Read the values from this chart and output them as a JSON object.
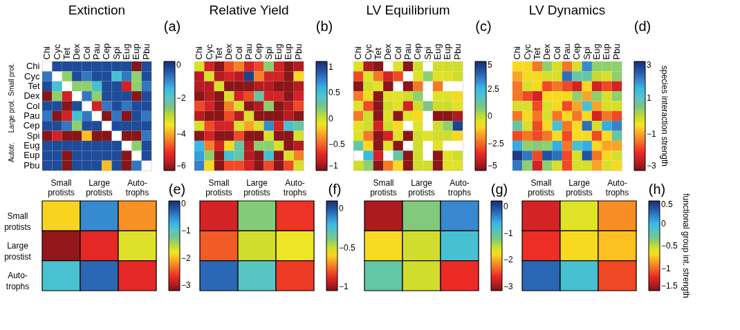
{
  "chart_data": [
    {
      "type": "heatmap",
      "title": "Extinction",
      "annotations": [
        "(a)",
        "Small prot.",
        "Large prot.",
        "Autotr."
      ],
      "categories": [
        "Chi",
        "Cyc",
        "Tet",
        "Dex",
        "Col",
        "Pau",
        "Cep",
        "Spi",
        "Eug",
        "Eup",
        "Pbu"
      ],
      "y_categories": [
        "Chi",
        "Cyc",
        "Tet",
        "Dex",
        "Col",
        "Pau",
        "Cep",
        "Spi",
        "Eug",
        "Eup",
        "Pbu"
      ],
      "cells": [
        [
          null,
          -0.4,
          -0.4,
          -0.4,
          -0.4,
          -0.4,
          -0.4,
          -0.4,
          -0.4,
          -5.9,
          -0.4
        ],
        [
          -0.9,
          null,
          -2.7,
          -0.4,
          -0.9,
          -0.4,
          -0.4,
          -1.8,
          -0.9,
          -2.7,
          -0.4
        ],
        [
          -0.4,
          -1.8,
          null,
          -2.7,
          -2.7,
          -1.8,
          -0.4,
          -0.4,
          -5.3,
          -2.7,
          -0.9
        ],
        [
          -5.9,
          -2.7,
          -5.3,
          null,
          -0.9,
          -2.7,
          -0.4,
          -0.4,
          -0.4,
          -5.9,
          -0.4
        ],
        [
          -0.4,
          -0.4,
          -5.9,
          -0.4,
          null,
          -5.3,
          -0.9,
          -0.4,
          -0.9,
          -0.4,
          -0.4
        ],
        [
          -0.9,
          -5.9,
          -5.3,
          -1.8,
          -0.9,
          null,
          -5.9,
          -0.9,
          -5.9,
          -0.4,
          -0.9
        ],
        [
          -0.4,
          -0.4,
          -0.9,
          -2.7,
          -0.4,
          -0.4,
          null,
          -0.4,
          -0.4,
          -0.4,
          -0.4
        ],
        [
          -5.9,
          -5.3,
          -5.9,
          -5.9,
          -3.8,
          -5.9,
          -5.9,
          null,
          -5.9,
          -5.9,
          -0.9
        ],
        [
          -0.4,
          -0.4,
          -0.4,
          -0.4,
          -0.4,
          -0.4,
          -0.4,
          -0.4,
          null,
          -2.7,
          -0.4
        ],
        [
          -0.4,
          -0.4,
          -5.9,
          -0.4,
          -0.4,
          -0.4,
          -0.4,
          -0.4,
          -5.9,
          null,
          -0.4
        ],
        [
          -0.4,
          -0.4,
          -5.9,
          -0.4,
          -0.4,
          -0.4,
          -3.8,
          -0.4,
          -5.9,
          -0.9,
          null
        ]
      ],
      "clim": [
        -6,
        0
      ],
      "cticks": [
        0,
        -2,
        -4,
        -6
      ]
    },
    {
      "type": "heatmap",
      "title": "Relative Yield",
      "annotations": [
        "(b)"
      ],
      "tick_labels": "x",
      "categories": [
        "Chi",
        "Cyc",
        "Tet",
        "Dex",
        "Col",
        "Pau",
        "Cep",
        "Spi",
        "Eug",
        "Eup",
        "Pbu"
      ],
      "y_categories": [
        null,
        null,
        null,
        null,
        null,
        null,
        null,
        null,
        null,
        null,
        null
      ],
      "cells": [
        [
          -0.03,
          -0.75,
          -0.96,
          -0.58,
          -0.41,
          -0.75,
          -0.58,
          0.16,
          -0.75,
          -0.96,
          -0.85
        ],
        [
          -0.85,
          -0.03,
          -0.85,
          -0.75,
          -0.85,
          1.0,
          -0.41,
          -0.75,
          -0.75,
          -0.96,
          -0.16
        ],
        [
          -0.85,
          -0.85,
          -0.03,
          -0.96,
          -0.96,
          -0.96,
          -0.85,
          -0.85,
          -0.96,
          -0.96,
          -0.85
        ],
        [
          -0.96,
          -0.85,
          -0.96,
          -0.03,
          -0.75,
          -0.58,
          0.3,
          -0.75,
          -0.75,
          -0.96,
          -0.75
        ],
        [
          -0.58,
          -0.75,
          -0.96,
          -0.41,
          -0.03,
          -0.96,
          -0.85,
          0.16,
          -0.96,
          -0.85,
          -0.58
        ],
        [
          -0.85,
          -0.96,
          -0.96,
          -0.58,
          -0.85,
          -0.03,
          -0.96,
          -0.96,
          -0.96,
          -0.85,
          -0.96
        ],
        [
          -0.03,
          -0.58,
          -0.75,
          -0.75,
          -0.03,
          -0.3,
          -0.03,
          0.72,
          -0.75,
          0.47,
          0.3
        ],
        [
          -0.96,
          -0.75,
          -0.96,
          -0.96,
          -0.58,
          -0.96,
          -0.96,
          -0.03,
          -0.96,
          -0.96,
          -0.03
        ],
        [
          0.55,
          -0.41,
          -0.75,
          -0.16,
          0.3,
          -0.85,
          0.16,
          0.16,
          -0.03,
          -0.96,
          -0.85
        ],
        [
          0.65,
          0.16,
          -0.96,
          0.47,
          0.3,
          -0.85,
          -0.96,
          0.47,
          -0.96,
          -0.03,
          -0.41
        ],
        [
          0.75,
          -0.16,
          -0.96,
          -0.58,
          -0.58,
          -0.75,
          -0.96,
          -0.58,
          -0.96,
          -0.58,
          -0.03
        ]
      ],
      "clim": [
        -1,
        1.1
      ],
      "cticks": [
        1,
        0.5,
        0,
        -0.5,
        -1
      ]
    },
    {
      "type": "heatmap",
      "title": "LV Equilibrium",
      "annotations": [
        "(c)"
      ],
      "tick_labels": "x",
      "categories": [
        "Chi",
        "Cyc",
        "Tet",
        "Dex",
        "Col",
        "Pau",
        "Cep",
        "Spi",
        "Eug",
        "Eup",
        "Pbu"
      ],
      "y_categories": [
        null,
        null,
        null,
        null,
        null,
        null,
        null,
        null,
        null,
        null,
        null
      ],
      "cells": [
        [
          -0.5,
          -4.4,
          -4.8,
          null,
          -0.5,
          -4.8,
          -0.2,
          null,
          -0.2,
          -0.2,
          -0.2
        ],
        [
          -3,
          -0.5,
          -2.3,
          -3.8,
          -3,
          null,
          -0.5,
          0.5,
          -0.5,
          -0.5,
          -0.2
        ],
        [
          -4.8,
          -0.2,
          -0.5,
          -4.8,
          null,
          -4.8,
          -2.3,
          null,
          -2.3,
          null,
          null
        ],
        [
          -2.3,
          -1,
          -4.8,
          -0.5,
          -0.5,
          -0.2,
          0.5,
          null,
          -0.5,
          -0.5,
          -1
        ],
        [
          -0.5,
          -3,
          -4.8,
          -0.2,
          -0.5,
          -3.8,
          -0.2,
          0.8,
          -0.2,
          -0.2,
          -0.5
        ],
        [
          -2.3,
          -0.2,
          -4.8,
          -0.5,
          -4.8,
          -0.5,
          -1,
          null,
          -4.8,
          -4.8,
          -4.4
        ],
        [
          -0.5,
          -0.2,
          -3.8,
          -0.2,
          -1,
          null,
          -0.5,
          null,
          -0.2,
          0.5,
          4.5
        ],
        [
          -0.5,
          -2.3,
          -4.8,
          -3.8,
          -0.5,
          -4.8,
          -0.2,
          -0.5,
          -0.2,
          -0.2,
          -1
        ],
        [
          1.2,
          -1,
          -4.8,
          -0.5,
          -4.8,
          null,
          -0.2,
          null,
          -0.5,
          null,
          null
        ],
        [
          null,
          2.2,
          -3.8,
          null,
          1.2,
          -4.8,
          -0.2,
          null,
          -4.8,
          -0.5,
          -0.2
        ],
        [
          -0.2,
          0.5,
          -4.8,
          -2.3,
          -1,
          -4.8,
          -0.2,
          -0.2,
          -4.8,
          -0.5,
          -0.5
        ]
      ],
      "clim": [
        -5,
        5
      ],
      "cticks": [
        5,
        2.5,
        0,
        -2.5,
        -5
      ]
    },
    {
      "type": "heatmap",
      "title": "LV Dynamics",
      "annotations": [
        "(d)"
      ],
      "tick_labels": "x",
      "clabel": "species interaction strength",
      "categories": [
        "Chi",
        "Cyc",
        "Tet",
        "Dex",
        "Col",
        "Pau",
        "Cep",
        "Spi",
        "Eug",
        "Eup",
        "Pbu"
      ],
      "y_categories": [
        null,
        null,
        null,
        null,
        null,
        null,
        null,
        null,
        null,
        null,
        null
      ],
      "cells": [
        [
          -0.6,
          -0.6,
          -1.4,
          0.3,
          -0.2,
          -1.4,
          -0.2,
          1.9,
          0.3,
          0.3,
          0.3
        ],
        [
          -1.0,
          -0.6,
          -0.6,
          -0.2,
          -0.2,
          2.2,
          0.7,
          0.7,
          0,
          -0.2,
          0.3
        ],
        [
          -1.4,
          -0.2,
          -0.6,
          -1.8,
          -1.4,
          -1.8,
          -2.3,
          -0.6,
          -2.3,
          -1.8,
          -2.3
        ],
        [
          -1.4,
          -1.8,
          -2.3,
          -0.6,
          -0.6,
          -0.6,
          0.3,
          -1.0,
          0.3,
          -0.2,
          0.3
        ],
        [
          -0.2,
          -0.2,
          -1.8,
          -0.2,
          -0.6,
          -1.8,
          -1.0,
          1.2,
          -1.0,
          -0.2,
          -0.2
        ],
        [
          -1.4,
          -0.6,
          -1.4,
          -0.2,
          -1.4,
          -0.6,
          -1.4,
          -0.6,
          -2.3,
          -1.4,
          -1.8
        ],
        [
          0.7,
          -0.2,
          -1.8,
          -0.6,
          1.2,
          -1.4,
          -0.6,
          2.2,
          -0.2,
          1.6,
          2.0
        ],
        [
          -1.8,
          -1.4,
          -1.8,
          -1.4,
          -0.6,
          -1.8,
          -0.6,
          -0.6,
          -1.8,
          -0.6,
          0.7
        ],
        [
          1.6,
          0.3,
          0.4,
          0.3,
          1.6,
          -1.4,
          1.2,
          1.6,
          -0.6,
          -1.0,
          -1.0
        ],
        [
          2.8,
          2.1,
          -1.8,
          2.5,
          2.2,
          -1.8,
          -0.2,
          2.5,
          -1.4,
          -0.6,
          -0.2
        ],
        [
          2.1,
          0.3,
          -2.3,
          0.3,
          -0.2,
          -1.8,
          -0.2,
          -0.2,
          -1.0,
          -0.2,
          -0.6
        ]
      ],
      "clim": [
        -3,
        3
      ],
      "cticks": [
        3,
        1,
        -1,
        -3
      ]
    },
    {
      "type": "heatmap",
      "annotations": [
        "(e)"
      ],
      "categories": [
        "Small\nprotists",
        "Large\nprotists",
        "Auto-\ntrophs"
      ],
      "y_categories": [
        "Small\nprotists",
        "Large\nprostist",
        "Auto-\ntrophs"
      ],
      "cells": [
        [
          -1.9,
          -0.5,
          -2.2
        ],
        [
          -3.1,
          -2.7,
          -1.7
        ],
        [
          -0.9,
          -0.3,
          -2.7
        ]
      ],
      "clim": [
        -3.2,
        0.1
      ],
      "cticks": [
        0,
        -1,
        -2,
        -3
      ]
    },
    {
      "type": "heatmap",
      "annotations": [
        "(f)"
      ],
      "tick_labels": "x",
      "categories": [
        "Small\nprotists",
        "Large\nprotists",
        "Auto-\ntrophs"
      ],
      "y_categories": [
        null,
        null,
        null
      ],
      "cells": [
        [
          -0.91,
          -0.4,
          -0.85
        ],
        [
          -0.79,
          -0.5,
          -0.56
        ],
        [
          -0.04,
          -0.28,
          -0.84
        ]
      ],
      "clim": [
        -1.05,
        0.1
      ],
      "cticks": [
        0,
        -0.5,
        -1
      ]
    },
    {
      "type": "heatmap",
      "annotations": [
        "(g)"
      ],
      "tick_labels": "x",
      "categories": [
        "Small\nprotists",
        "Large\nprotists",
        "Auto-\ntrophs"
      ],
      "y_categories": [
        null,
        null,
        null
      ],
      "cells": [
        [
          -2.95,
          -1.24,
          -0.4
        ],
        [
          -1.8,
          -1.55,
          -0.8
        ],
        [
          -1.07,
          -1.55,
          -2.6
        ]
      ],
      "clim": [
        -3.15,
        0.2
      ],
      "cticks": [
        0,
        -1,
        -2,
        -3
      ]
    },
    {
      "type": "heatmap",
      "annotations": [
        "(h)"
      ],
      "tick_labels": "x",
      "clabel": "functional group int. strength",
      "categories": [
        "Small\nprotists",
        "Large\nprotists",
        "Auto-\ntrophs"
      ],
      "y_categories": [
        null,
        null,
        null
      ],
      "cells": [
        [
          -1.26,
          -0.6,
          -0.9
        ],
        [
          -1.16,
          -0.7,
          -0.76
        ],
        [
          0.26,
          -0.1,
          -1.1
        ]
      ],
      "clim": [
        -1.5,
        0.5
      ],
      "cticks": [
        0.5,
        0,
        -0.5,
        -1,
        -1.5
      ]
    }
  ]
}
